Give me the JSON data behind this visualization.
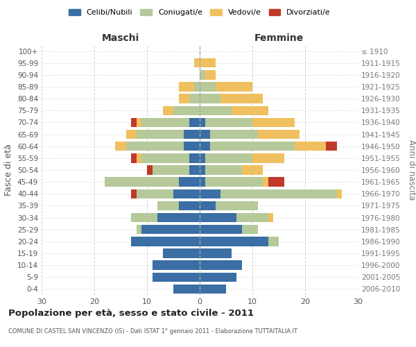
{
  "age_groups": [
    "0-4",
    "5-9",
    "10-14",
    "15-19",
    "20-24",
    "25-29",
    "30-34",
    "35-39",
    "40-44",
    "45-49",
    "50-54",
    "55-59",
    "60-64",
    "65-69",
    "70-74",
    "75-79",
    "80-84",
    "85-89",
    "90-94",
    "95-99",
    "100+"
  ],
  "birth_years": [
    "2006-2010",
    "2001-2005",
    "1996-2000",
    "1991-1995",
    "1986-1990",
    "1981-1985",
    "1976-1980",
    "1971-1975",
    "1966-1970",
    "1961-1965",
    "1956-1960",
    "1951-1955",
    "1946-1950",
    "1941-1945",
    "1936-1940",
    "1931-1935",
    "1926-1930",
    "1921-1925",
    "1916-1920",
    "1911-1915",
    "≤ 1910"
  ],
  "male": {
    "celibi": [
      5,
      9,
      9,
      7,
      13,
      11,
      8,
      4,
      5,
      4,
      2,
      2,
      3,
      3,
      2,
      0,
      0,
      0,
      0,
      0,
      0
    ],
    "coniugati": [
      0,
      0,
      0,
      0,
      0,
      1,
      5,
      4,
      7,
      14,
      7,
      9,
      11,
      9,
      9,
      5,
      2,
      1,
      0,
      0,
      0
    ],
    "vedovi": [
      0,
      0,
      0,
      0,
      0,
      0,
      0,
      0,
      0,
      0,
      0,
      1,
      2,
      2,
      1,
      2,
      2,
      3,
      0,
      1,
      0
    ],
    "divorziati": [
      0,
      0,
      0,
      0,
      0,
      0,
      0,
      0,
      1,
      0,
      1,
      1,
      0,
      0,
      1,
      0,
      0,
      0,
      0,
      0,
      0
    ]
  },
  "female": {
    "nubili": [
      5,
      7,
      8,
      6,
      13,
      8,
      7,
      3,
      4,
      1,
      1,
      1,
      2,
      2,
      1,
      0,
      0,
      0,
      0,
      0,
      0
    ],
    "coniugate": [
      0,
      0,
      0,
      0,
      2,
      3,
      6,
      8,
      22,
      11,
      7,
      9,
      16,
      9,
      9,
      6,
      4,
      3,
      1,
      0,
      0
    ],
    "vedove": [
      0,
      0,
      0,
      0,
      0,
      0,
      1,
      0,
      1,
      1,
      4,
      6,
      6,
      8,
      8,
      7,
      8,
      7,
      2,
      3,
      0
    ],
    "divorziate": [
      0,
      0,
      0,
      0,
      0,
      0,
      0,
      0,
      0,
      3,
      0,
      0,
      2,
      0,
      0,
      0,
      0,
      0,
      0,
      0,
      0
    ]
  },
  "colors": {
    "celibi": "#3a6ea5",
    "coniugati": "#b5c99a",
    "vedovi": "#f0c060",
    "divorziati": "#c0392b"
  },
  "xlim": 30,
  "title": "Popolazione per età, sesso e stato civile - 2011",
  "subtitle": "COMUNE DI CASTEL SAN VINCENZO (IS) - Dati ISTAT 1° gennaio 2011 - Elaborazione TUTTAITALIA.IT",
  "xlabel_left": "Maschi",
  "xlabel_right": "Femmine",
  "ylabel": "Fasce di età",
  "ylabel_right": "Anni di nascita",
  "bg_color": "#ffffff",
  "grid_color": "#cccccc"
}
